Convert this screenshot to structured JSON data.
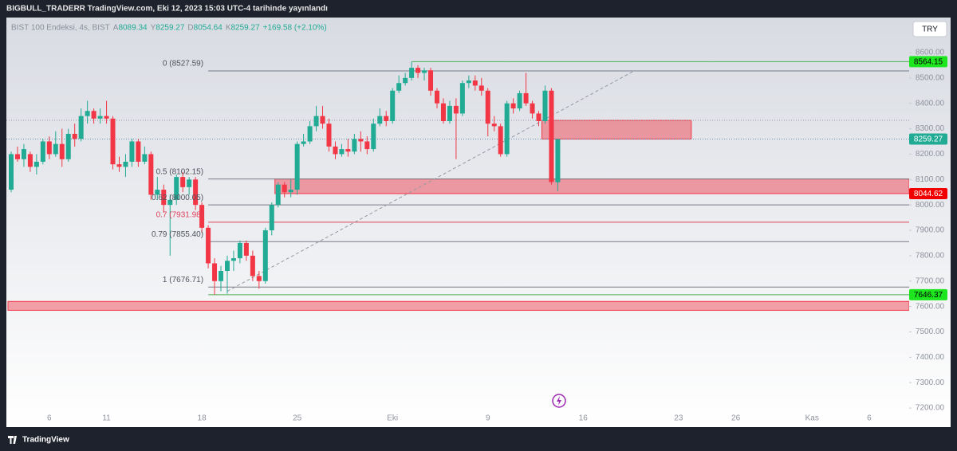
{
  "page_title": "BIGBULL_TRADERR TradingView.com, Eki 12, 2023 15:03 UTC-4 tarihinde yayınlandı",
  "currency_button": "TRY",
  "footer_brand": "TradingView",
  "chart_data": {
    "type": "candlestick",
    "symbol": "BIST 100 Endeksi, 4s, BIST",
    "ohlc_legend": [
      {
        "key": "A",
        "value": "8089.34"
      },
      {
        "key": "Y",
        "value": "8259.27"
      },
      {
        "key": "D",
        "value": "8054.64"
      },
      {
        "key": "K",
        "value": "8259.27"
      }
    ],
    "change": "+169.58 (+2.10%)",
    "up_color": "#22ab94",
    "down_color": "#f23645",
    "grid": false,
    "categories": [
      null,
      null,
      null,
      null,
      null,
      null,
      "6",
      null,
      null,
      null,
      null,
      null,
      null,
      null,
      null,
      "11",
      null,
      null,
      null,
      null,
      null,
      null,
      null,
      null,
      null,
      null,
      null,
      null,
      null,
      null,
      "18",
      null,
      null,
      null,
      null,
      null,
      null,
      null,
      null,
      null,
      null,
      null,
      null,
      null,
      null,
      "25",
      null,
      null,
      null,
      null,
      null,
      null,
      null,
      null,
      null,
      null,
      null,
      null,
      null,
      null,
      "Eki",
      null,
      null,
      null,
      null,
      null,
      null,
      null,
      null,
      null,
      null,
      null,
      null,
      null,
      null,
      "9",
      null,
      null,
      null,
      null,
      null,
      null,
      null,
      null,
      null,
      null,
      null,
      null,
      null,
      null,
      "16",
      null,
      null,
      null,
      null,
      null,
      null,
      null,
      null,
      null,
      null,
      null,
      null,
      null,
      null,
      "23",
      null,
      null,
      null,
      null,
      null,
      null,
      null,
      null,
      "26",
      null,
      null,
      null,
      null,
      null,
      null,
      null,
      null,
      null,
      null,
      null,
      "Kas",
      null,
      null,
      null,
      null,
      null,
      null,
      null,
      null,
      "6",
      null,
      null,
      null,
      null,
      null
    ],
    "open": [
      8060,
      8200,
      8180,
      8200,
      8150,
      8170,
      8250,
      8200,
      8240,
      8180,
      8280,
      8260,
      8350,
      8370,
      8340,
      8350,
      8340,
      8160,
      8150,
      8170,
      8250,
      8170,
      8200,
      8040,
      8060,
      8000,
      8020,
      8110,
      8070,
      8100,
      8000,
      7910,
      7770,
      7700,
      7740,
      7780,
      7790,
      7850,
      7800,
      7720,
      7700,
      7900,
      8000,
      8080,
      8050,
      8060,
      8240,
      8250,
      8310,
      8350,
      8320,
      8230,
      8200,
      8220,
      8210,
      8260,
      8250,
      8220,
      8320,
      8350,
      8330,
      8450,
      8480,
      8500,
      8540,
      8520,
      8530,
      8450,
      8400,
      8330,
      8390,
      8360,
      8480,
      8490,
      8470,
      8450,
      8320,
      8310,
      8200,
      8400,
      8380,
      8440,
      8400,
      8360,
      8330,
      8450,
      8089.34,
      null,
      null,
      null,
      null,
      null,
      null,
      null,
      null,
      null,
      null,
      null,
      null,
      null,
      null,
      null,
      null,
      null,
      null,
      null,
      null,
      null,
      null,
      null,
      null,
      null,
      null,
      null,
      null,
      null,
      null,
      null,
      null,
      null,
      null,
      null,
      null,
      null,
      null,
      null,
      null,
      null,
      null,
      null,
      null,
      null,
      null,
      null,
      null,
      null,
      null,
      null,
      null,
      null,
      null
    ],
    "high": [
      8210,
      8230,
      8240,
      8210,
      8200,
      8260,
      8270,
      8290,
      8300,
      8300,
      8320,
      8380,
      8410,
      8380,
      8380,
      8410,
      8350,
      8190,
      8200,
      8260,
      8260,
      8230,
      8210,
      8110,
      8080,
      8040,
      8120,
      8130,
      8110,
      8110,
      8010,
      7920,
      7790,
      7760,
      7800,
      7820,
      7860,
      7860,
      7820,
      7740,
      7910,
      8010,
      8090,
      8090,
      8100,
      8250,
      8280,
      8330,
      8390,
      8390,
      8340,
      8250,
      8240,
      8260,
      8280,
      8290,
      8270,
      8340,
      8380,
      8370,
      8460,
      8510,
      8520,
      8564.15,
      8550,
      8540,
      8540,
      8460,
      8420,
      8410,
      8420,
      8490,
      8510,
      8510,
      8500,
      8460,
      8350,
      8320,
      8410,
      8420,
      8450,
      8520,
      8410,
      8370,
      8470,
      8460,
      8259.27,
      null,
      null,
      null,
      null,
      null,
      null,
      null,
      null,
      null,
      null,
      null,
      null,
      null,
      null,
      null,
      null,
      null,
      null,
      null,
      null,
      null,
      null,
      null,
      null,
      null,
      null,
      null,
      null,
      null,
      null,
      null,
      null,
      null,
      null,
      null,
      null,
      null,
      null,
      null,
      null,
      null,
      null,
      null,
      null,
      null,
      null,
      null,
      null,
      null,
      null,
      null,
      null,
      null,
      null
    ],
    "low": [
      8050,
      8170,
      8150,
      8130,
      8120,
      8160,
      8180,
      8190,
      8150,
      8170,
      8230,
      8250,
      8320,
      8320,
      8320,
      8320,
      8140,
      8130,
      8110,
      8150,
      8150,
      8160,
      8020,
      8020,
      7970,
      7800,
      8000,
      8050,
      8040,
      7980,
      7890,
      7750,
      7646.37,
      7660,
      7650,
      7740,
      7770,
      7780,
      7700,
      7670,
      7690,
      7880,
      7990,
      8030,
      8030,
      8040,
      8230,
      8240,
      8290,
      8300,
      8210,
      8180,
      8190,
      8190,
      8200,
      8210,
      8200,
      8210,
      8310,
      8310,
      8320,
      8440,
      8470,
      8490,
      8500,
      8490,
      8430,
      8380,
      8320,
      8320,
      8180,
      8350,
      8460,
      8450,
      8430,
      8270,
      8290,
      8190,
      8190,
      8360,
      8370,
      8390,
      8340,
      8310,
      8320,
      8080,
      8054.64,
      null,
      null,
      null,
      null,
      null,
      null,
      null,
      null,
      null,
      null,
      null,
      null,
      null,
      null,
      null,
      null,
      null,
      null,
      null,
      null,
      null,
      null,
      null,
      null,
      null,
      null,
      null,
      null,
      null,
      null,
      null,
      null,
      null,
      null,
      null,
      null,
      null,
      null,
      null,
      null,
      null,
      null,
      null,
      null,
      null,
      null,
      null,
      null,
      null,
      null,
      null,
      null,
      null,
      null
    ],
    "close": [
      8200,
      8180,
      8220,
      8150,
      8170,
      8250,
      8200,
      8240,
      8180,
      8280,
      8260,
      8350,
      8370,
      8340,
      8350,
      8340,
      8160,
      8150,
      8170,
      8250,
      8170,
      8200,
      8040,
      8060,
      8000,
      8020,
      8110,
      8070,
      8100,
      8000,
      7910,
      7770,
      7700,
      7740,
      7780,
      7790,
      7850,
      7800,
      7720,
      7700,
      7900,
      8000,
      8080,
      8050,
      8060,
      8240,
      8250,
      8310,
      8350,
      8320,
      8230,
      8200,
      8220,
      8210,
      8260,
      8250,
      8220,
      8320,
      8350,
      8330,
      8450,
      8480,
      8500,
      8540,
      8520,
      8530,
      8450,
      8400,
      8330,
      8390,
      8360,
      8480,
      8490,
      8470,
      8450,
      8320,
      8310,
      8200,
      8400,
      8380,
      8440,
      8400,
      8360,
      8330,
      8450,
      8090,
      8259.27,
      null,
      null,
      null,
      null,
      null,
      null,
      null,
      null,
      null,
      null,
      null,
      null,
      null,
      null,
      null,
      null,
      null,
      null,
      null,
      null,
      null,
      null,
      null,
      null,
      null,
      null,
      null,
      null,
      null,
      null,
      null,
      null,
      null,
      null,
      null,
      null,
      null,
      null,
      null,
      null,
      null,
      null,
      null,
      null,
      null,
      null,
      null,
      null,
      null,
      null,
      null,
      null,
      null,
      null
    ],
    "ylim": [
      7125,
      8738
    ],
    "yticks": [
      {
        "value": 7200,
        "label": "7200.00"
      },
      {
        "value": 7300,
        "label": "7300.00"
      },
      {
        "value": 7400,
        "label": "7400.00"
      },
      {
        "value": 7500,
        "label": "7500.00"
      },
      {
        "value": 7600,
        "label": "7600.00"
      },
      {
        "value": 7700,
        "label": "7700.00"
      },
      {
        "value": 7800,
        "label": "7800.00"
      },
      {
        "value": 7900,
        "label": "7900.00"
      },
      {
        "value": 8000,
        "label": "8000.00"
      },
      {
        "value": 8100,
        "label": "8100.00"
      },
      {
        "value": 8200,
        "label": "8200.00"
      },
      {
        "value": 8300,
        "label": "8300.00"
      },
      {
        "value": 8400,
        "label": "8400.00"
      },
      {
        "value": 8500,
        "label": "8500.00"
      },
      {
        "value": 8600,
        "label": "8600.00"
      }
    ],
    "fib_start": 31,
    "fib_levels": [
      {
        "label": "0 (8527.59)",
        "value": 8527.59,
        "color": "#787b86"
      },
      {
        "label": "0.5 (8102.15)",
        "value": 8102.15,
        "color": "#787b86"
      },
      {
        "label": "0.62 (8000.05)",
        "value": 8000.05,
        "color": "#787b86"
      },
      {
        "label": "0.7 (7931.98)",
        "value": 7931.98,
        "color": "#e0425b"
      },
      {
        "label": "0.79 (7855.40)",
        "value": 7855.4,
        "color": "#787b86"
      },
      {
        "label": "1 (7676.71)",
        "value": 7676.71,
        "color": "#787b86"
      }
    ],
    "zones": [
      {
        "top": 8102.15,
        "bottom": 8044.62,
        "start": 42
      },
      {
        "top": 8333,
        "bottom": 8259.27,
        "start": 84,
        "end": 107
      },
      {
        "top": 7620,
        "bottom": 7585,
        "start": 0
      }
    ],
    "level_lines": [
      {
        "value": 8564.15,
        "start": 63,
        "color": "#4caf50"
      },
      {
        "value": 7646.37,
        "start": 31,
        "color": "#4caf50"
      }
    ],
    "dotted_lines": [
      {
        "value": 8333,
        "color": "#9598a1"
      },
      {
        "value": 8259.27,
        "color": "#5b8fb8"
      }
    ],
    "trendline": {
      "x": [
        34,
        98
      ],
      "y": [
        7660,
        8527.59
      ],
      "color": "#9598a1"
    },
    "price_labels": [
      {
        "label": "8564.15",
        "value": 8564.15,
        "bg": "#1ee61e",
        "fg": "#000000"
      },
      {
        "label": "8259.27",
        "value": 8259.27,
        "bg": "#22ab94",
        "fg": "#ffffff"
      },
      {
        "label": "8044.62",
        "value": 8044.62,
        "bg": "#f20000",
        "fg": "#ffffff"
      },
      {
        "label": "7646.37",
        "value": 7646.37,
        "bg": "#1ee61e",
        "fg": "#000000"
      }
    ]
  }
}
